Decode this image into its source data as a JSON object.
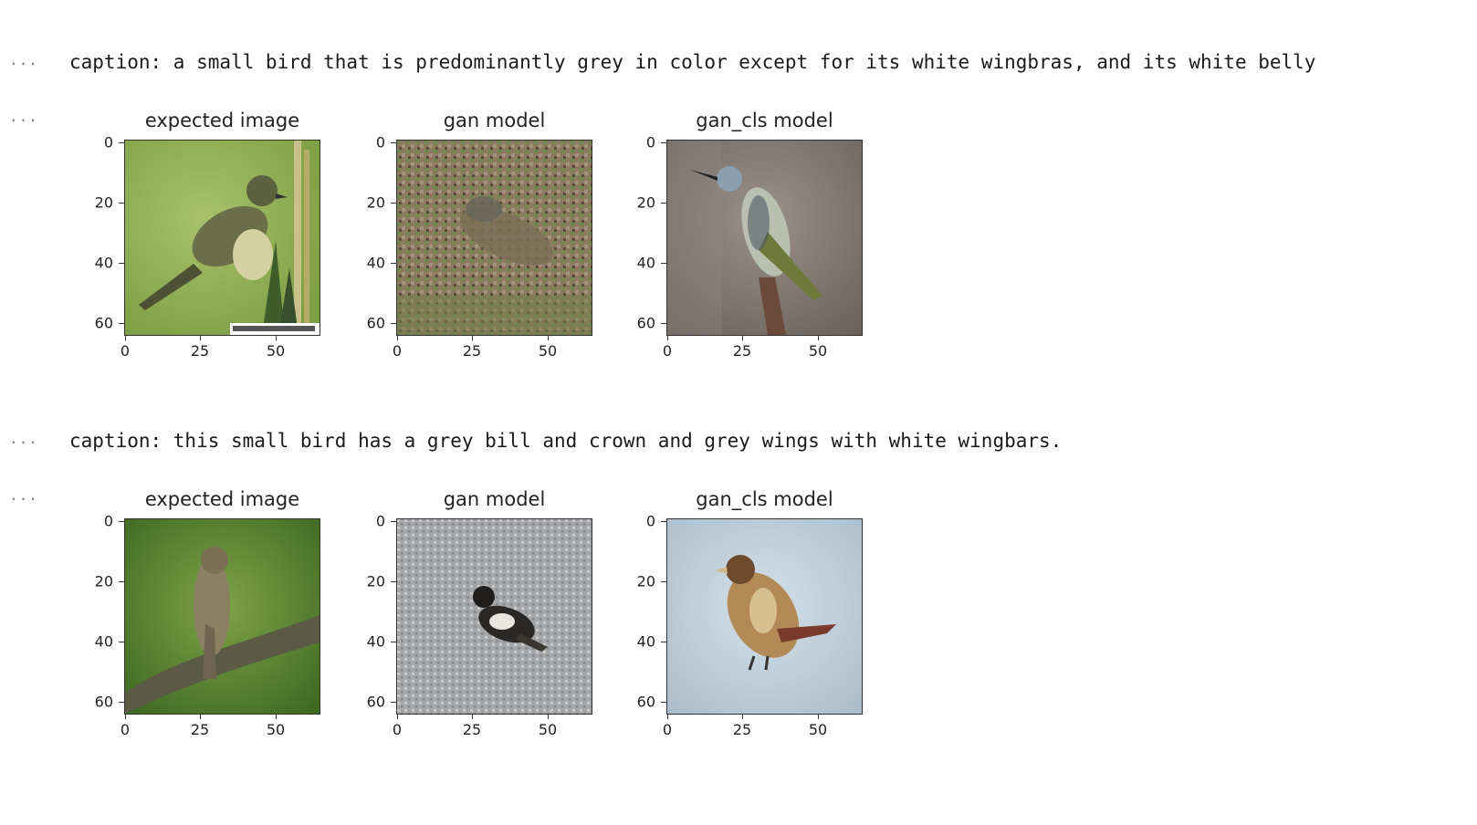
{
  "rows": [
    {
      "gutter_caption": "...",
      "caption": "caption: a small bird that is predominantly grey in color except for its white wingbras, and its white belly",
      "gutter_plots": "...",
      "plots": [
        {
          "title": "expected image",
          "y_ticks": [
            "0",
            "20",
            "40",
            "60"
          ],
          "x_ticks": [
            "0",
            "25",
            "50"
          ],
          "image": "photo of small grey-green bird perched on a twig, green background"
        },
        {
          "title": "gan model",
          "y_ticks": [
            "0",
            "20",
            "40",
            "60"
          ],
          "x_ticks": [
            "0",
            "25",
            "50"
          ],
          "image": "blurry generated image of a brownish bird on ground"
        },
        {
          "title": "gan_cls model",
          "y_ticks": [
            "0",
            "20",
            "40",
            "60"
          ],
          "x_ticks": [
            "0",
            "25",
            "50"
          ],
          "image": "generated image of a blue-grey bird perched on a stick"
        }
      ]
    },
    {
      "gutter_caption": "...",
      "caption": "caption: this small bird has a grey bill and crown and grey wings with white wingbars.",
      "gutter_plots": "...",
      "plots": [
        {
          "title": "expected image",
          "y_ticks": [
            "0",
            "20",
            "40",
            "60"
          ],
          "x_ticks": [
            "0",
            "25",
            "50"
          ],
          "image": "photo of streaked brown bird on a branch, green background"
        },
        {
          "title": "gan model",
          "y_ticks": [
            "0",
            "20",
            "40",
            "60"
          ],
          "x_ticks": [
            "0",
            "25",
            "50"
          ],
          "image": "generated image of a dark bird on grey gravel"
        },
        {
          "title": "gan_cls model",
          "y_ticks": [
            "0",
            "20",
            "40",
            "60"
          ],
          "x_ticks": [
            "0",
            "25",
            "50"
          ],
          "image": "generated image of a brown speckled bird on pale blue background"
        }
      ]
    }
  ]
}
